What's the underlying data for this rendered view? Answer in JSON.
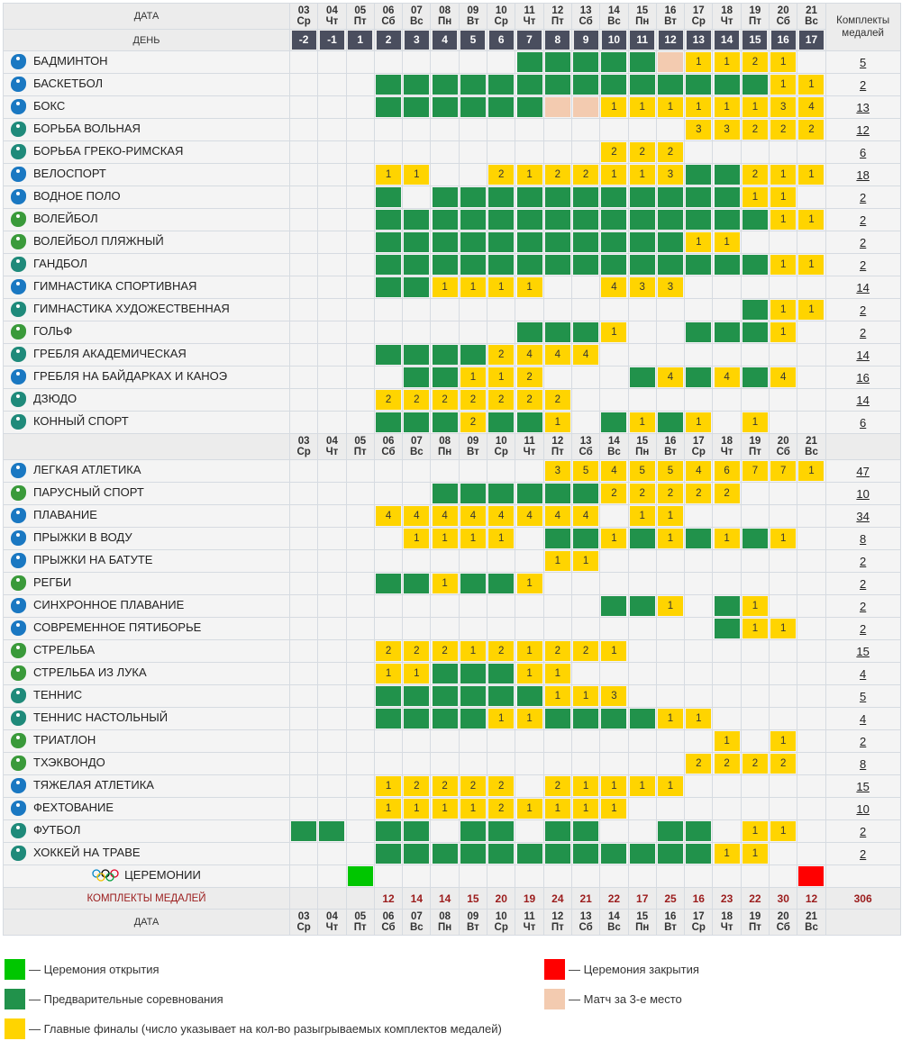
{
  "header": {
    "date_label": "ДАТА",
    "day_label": "ДЕНЬ",
    "total_label": "Комплекты медалей"
  },
  "days": [
    {
      "date": "03",
      "dow": "Ср",
      "day": "-2",
      "weekend": false
    },
    {
      "date": "04",
      "dow": "Чт",
      "day": "-1",
      "weekend": false
    },
    {
      "date": "05",
      "dow": "Пт",
      "day": "1",
      "weekend": false
    },
    {
      "date": "06",
      "dow": "Сб",
      "day": "2",
      "weekend": true
    },
    {
      "date": "07",
      "dow": "Вс",
      "day": "3",
      "weekend": true
    },
    {
      "date": "08",
      "dow": "Пн",
      "day": "4",
      "weekend": false
    },
    {
      "date": "09",
      "dow": "Вт",
      "day": "5",
      "weekend": false
    },
    {
      "date": "10",
      "dow": "Ср",
      "day": "6",
      "weekend": false
    },
    {
      "date": "11",
      "dow": "Чт",
      "day": "7",
      "weekend": false
    },
    {
      "date": "12",
      "dow": "Пт",
      "day": "8",
      "weekend": false
    },
    {
      "date": "13",
      "dow": "Сб",
      "day": "9",
      "weekend": true
    },
    {
      "date": "14",
      "dow": "Вс",
      "day": "10",
      "weekend": true
    },
    {
      "date": "15",
      "dow": "Пн",
      "day": "11",
      "weekend": false
    },
    {
      "date": "16",
      "dow": "Вт",
      "day": "12",
      "weekend": false
    },
    {
      "date": "17",
      "dow": "Ср",
      "day": "13",
      "weekend": false
    },
    {
      "date": "18",
      "dow": "Чт",
      "day": "14",
      "weekend": false
    },
    {
      "date": "19",
      "dow": "Пт",
      "day": "15",
      "weekend": false
    },
    {
      "date": "20",
      "dow": "Сб",
      "day": "16",
      "weekend": true
    },
    {
      "date": "21",
      "dow": "Вс",
      "day": "17",
      "weekend": true
    }
  ],
  "sports_a": [
    {
      "name": "БАДМИНТОН",
      "medals": "5",
      "color": "#1a78c2",
      "cells": [
        "",
        "",
        "",
        "",
        "",
        "",
        "",
        "",
        "G",
        "G",
        "G",
        "G",
        "G",
        "P",
        "1",
        "1",
        "2",
        "1",
        ""
      ]
    },
    {
      "name": "БАСКЕТБОЛ",
      "medals": "2",
      "color": "#1a78c2",
      "cells": [
        "",
        "",
        "",
        "G",
        "G",
        "G",
        "G",
        "G",
        "G",
        "G",
        "G",
        "G",
        "G",
        "G",
        "G",
        "G",
        "G",
        "1",
        "1"
      ]
    },
    {
      "name": "БОКС",
      "medals": "13",
      "color": "#1a78c2",
      "cells": [
        "",
        "",
        "",
        "G",
        "G",
        "G",
        "G",
        "G",
        "G",
        "P",
        "P",
        "1",
        "1",
        "1",
        "1",
        "1",
        "1",
        "3",
        "4"
      ]
    },
    {
      "name": "БОРЬБА ВОЛЬНАЯ",
      "medals": "12",
      "color": "#1f8a7a",
      "cells": [
        "",
        "",
        "",
        "",
        "",
        "",
        "",
        "",
        "",
        "",
        "",
        "",
        "",
        "",
        "3",
        "3",
        "2",
        "2",
        "2"
      ]
    },
    {
      "name": "БОРЬБА ГРЕКО-РИМСКАЯ",
      "medals": "6",
      "color": "#1f8a7a",
      "cells": [
        "",
        "",
        "",
        "",
        "",
        "",
        "",
        "",
        "",
        "",
        "",
        "2",
        "2",
        "2",
        "",
        "",
        "",
        "",
        ""
      ]
    },
    {
      "name": "ВЕЛОСПОРТ",
      "medals": "18",
      "color": "#1a78c2",
      "cells": [
        "",
        "",
        "",
        "1",
        "1",
        "",
        "",
        "2",
        "1",
        "2",
        "2",
        "1",
        "1",
        "3",
        "G",
        "G",
        "2",
        "1",
        "1"
      ]
    },
    {
      "name": "ВОДНОЕ ПОЛО",
      "medals": "2",
      "color": "#1a78c2",
      "cells": [
        "",
        "",
        "",
        "G",
        "",
        "G",
        "G",
        "G",
        "G",
        "G",
        "G",
        "G",
        "G",
        "G",
        "G",
        "G",
        "1",
        "1",
        ""
      ]
    },
    {
      "name": "ВОЛЕЙБОЛ",
      "medals": "2",
      "color": "#3a9a3a",
      "cells": [
        "",
        "",
        "",
        "G",
        "G",
        "G",
        "G",
        "G",
        "G",
        "G",
        "G",
        "G",
        "G",
        "G",
        "G",
        "G",
        "G",
        "1",
        "1"
      ]
    },
    {
      "name": "ВОЛЕЙБОЛ ПЛЯЖНЫЙ",
      "medals": "2",
      "color": "#3a9a3a",
      "cells": [
        "",
        "",
        "",
        "G",
        "G",
        "G",
        "G",
        "G",
        "G",
        "G",
        "G",
        "G",
        "G",
        "G",
        "1",
        "1",
        "",
        "",
        ""
      ]
    },
    {
      "name": "ГАНДБОЛ",
      "medals": "2",
      "color": "#1f8a7a",
      "cells": [
        "",
        "",
        "",
        "G",
        "G",
        "G",
        "G",
        "G",
        "G",
        "G",
        "G",
        "G",
        "G",
        "G",
        "G",
        "G",
        "G",
        "1",
        "1"
      ]
    },
    {
      "name": "ГИМНАСТИКА СПОРТИВНАЯ",
      "medals": "14",
      "color": "#1a78c2",
      "cells": [
        "",
        "",
        "",
        "G",
        "G",
        "1",
        "1",
        "1",
        "1",
        "",
        "",
        "4",
        "3",
        "3",
        "",
        "",
        "",
        "",
        ""
      ]
    },
    {
      "name": "ГИМНАСТИКА ХУДОЖЕСТВЕННАЯ",
      "medals": "2",
      "color": "#1f8a7a",
      "cells": [
        "",
        "",
        "",
        "",
        "",
        "",
        "",
        "",
        "",
        "",
        "",
        "",
        "",
        "",
        "",
        "",
        "G",
        "1",
        "1"
      ]
    },
    {
      "name": "ГОЛЬФ",
      "medals": "2",
      "color": "#3a9a3a",
      "cells": [
        "",
        "",
        "",
        "",
        "",
        "",
        "",
        "",
        "G",
        "G",
        "G",
        "1",
        "",
        "",
        "G",
        "G",
        "G",
        "1",
        ""
      ]
    },
    {
      "name": "ГРЕБЛЯ АКАДЕМИЧЕСКАЯ",
      "medals": "14",
      "color": "#1f8a7a",
      "cells": [
        "",
        "",
        "",
        "G",
        "G",
        "G",
        "G",
        "2",
        "4",
        "4",
        "4",
        "",
        "",
        "",
        "",
        "",
        "",
        "",
        ""
      ]
    },
    {
      "name": "ГРЕБЛЯ НА БАЙДАРКАХ И КАНОЭ",
      "medals": "16",
      "color": "#1a78c2",
      "cells": [
        "",
        "",
        "",
        "",
        "G",
        "G",
        "1",
        "1",
        "2",
        "",
        "",
        "",
        "G",
        "4",
        "G",
        "4",
        "G",
        "4",
        ""
      ]
    },
    {
      "name": "ДЗЮДО",
      "medals": "14",
      "color": "#1f8a7a",
      "cells": [
        "",
        "",
        "",
        "2",
        "2",
        "2",
        "2",
        "2",
        "2",
        "2",
        "",
        "",
        "",
        "",
        "",
        "",
        "",
        "",
        ""
      ]
    },
    {
      "name": "КОННЫЙ СПОРТ",
      "medals": "6",
      "color": "#1f8a7a",
      "cells": [
        "",
        "",
        "",
        "G",
        "G",
        "G",
        "2",
        "G",
        "G",
        "1",
        "",
        "G",
        "1",
        "G",
        "1",
        "",
        "1",
        "",
        ""
      ]
    }
  ],
  "sports_b": [
    {
      "name": "ЛЕГКАЯ АТЛЕТИКА",
      "medals": "47",
      "color": "#1a78c2",
      "cells": [
        "",
        "",
        "",
        "",
        "",
        "",
        "",
        "",
        "",
        "3",
        "5",
        "4",
        "5",
        "5",
        "4",
        "6",
        "7",
        "7",
        "1"
      ]
    },
    {
      "name": "ПАРУСНЫЙ СПОРТ",
      "medals": "10",
      "color": "#3a9a3a",
      "cells": [
        "",
        "",
        "",
        "",
        "",
        "G",
        "G",
        "G",
        "G",
        "G",
        "G",
        "2",
        "2",
        "2",
        "2",
        "2",
        "",
        "",
        ""
      ]
    },
    {
      "name": "ПЛАВАНИЕ",
      "medals": "34",
      "color": "#1a78c2",
      "cells": [
        "",
        "",
        "",
        "4",
        "4",
        "4",
        "4",
        "4",
        "4",
        "4",
        "4",
        "",
        "1",
        "1",
        "",
        "",
        "",
        "",
        ""
      ]
    },
    {
      "name": "ПРЫЖКИ В ВОДУ",
      "medals": "8",
      "color": "#1a78c2",
      "cells": [
        "",
        "",
        "",
        "",
        "1",
        "1",
        "1",
        "1",
        "",
        "G",
        "G",
        "1",
        "G",
        "1",
        "G",
        "1",
        "G",
        "1",
        ""
      ]
    },
    {
      "name": "ПРЫЖКИ НА БАТУТЕ",
      "medals": "2",
      "color": "#1a78c2",
      "cells": [
        "",
        "",
        "",
        "",
        "",
        "",
        "",
        "",
        "",
        "1",
        "1",
        "",
        "",
        "",
        "",
        "",
        "",
        "",
        ""
      ]
    },
    {
      "name": "РЕГБИ",
      "medals": "2",
      "color": "#3a9a3a",
      "cells": [
        "",
        "",
        "",
        "G",
        "G",
        "1",
        "G",
        "G",
        "1",
        "",
        "",
        "",
        "",
        "",
        "",
        "",
        "",
        "",
        ""
      ]
    },
    {
      "name": "СИНХРОННОЕ ПЛАВАНИЕ",
      "medals": "2",
      "color": "#1a78c2",
      "cells": [
        "",
        "",
        "",
        "",
        "",
        "",
        "",
        "",
        "",
        "",
        "",
        "G",
        "G",
        "1",
        "",
        "G",
        "1",
        "",
        ""
      ]
    },
    {
      "name": "СОВРЕМЕННОЕ ПЯТИБОРЬЕ",
      "medals": "2",
      "color": "#1a78c2",
      "cells": [
        "",
        "",
        "",
        "",
        "",
        "",
        "",
        "",
        "",
        "",
        "",
        "",
        "",
        "",
        "",
        "G",
        "1",
        "1",
        ""
      ]
    },
    {
      "name": "СТРЕЛЬБА",
      "medals": "15",
      "color": "#3a9a3a",
      "cells": [
        "",
        "",
        "",
        "2",
        "2",
        "2",
        "1",
        "2",
        "1",
        "2",
        "2",
        "1",
        "",
        "",
        "",
        "",
        "",
        "",
        ""
      ]
    },
    {
      "name": "СТРЕЛЬБА ИЗ ЛУКА",
      "medals": "4",
      "color": "#3a9a3a",
      "cells": [
        "",
        "",
        "",
        "1",
        "1",
        "G",
        "G",
        "G",
        "1",
        "1",
        "",
        "",
        "",
        "",
        "",
        "",
        "",
        "",
        ""
      ]
    },
    {
      "name": "ТЕННИС",
      "medals": "5",
      "color": "#1f8a7a",
      "cells": [
        "",
        "",
        "",
        "G",
        "G",
        "G",
        "G",
        "G",
        "G",
        "1",
        "1",
        "3",
        "",
        "",
        "",
        "",
        "",
        "",
        ""
      ]
    },
    {
      "name": "ТЕННИС НАСТОЛЬНЫЙ",
      "medals": "4",
      "color": "#1f8a7a",
      "cells": [
        "",
        "",
        "",
        "G",
        "G",
        "G",
        "G",
        "1",
        "1",
        "G",
        "G",
        "G",
        "G",
        "1",
        "1",
        "",
        "",
        "",
        ""
      ]
    },
    {
      "name": "ТРИАТЛОН",
      "medals": "2",
      "color": "#3a9a3a",
      "cells": [
        "",
        "",
        "",
        "",
        "",
        "",
        "",
        "",
        "",
        "",
        "",
        "",
        "",
        "",
        "",
        "1",
        "",
        "1",
        ""
      ]
    },
    {
      "name": "ТХЭКВОНДО",
      "medals": "8",
      "color": "#3a9a3a",
      "cells": [
        "",
        "",
        "",
        "",
        "",
        "",
        "",
        "",
        "",
        "",
        "",
        "",
        "",
        "",
        "2",
        "2",
        "2",
        "2",
        ""
      ]
    },
    {
      "name": "ТЯЖЕЛАЯ АТЛЕТИКА",
      "medals": "15",
      "color": "#1a78c2",
      "cells": [
        "",
        "",
        "",
        "1",
        "2",
        "2",
        "2",
        "2",
        "",
        "2",
        "1",
        "1",
        "1",
        "1",
        "",
        "",
        "",
        "",
        ""
      ]
    },
    {
      "name": "ФЕХТОВАНИЕ",
      "medals": "10",
      "color": "#1a78c2",
      "cells": [
        "",
        "",
        "",
        "1",
        "1",
        "1",
        "1",
        "2",
        "1",
        "1",
        "1",
        "1",
        "",
        "",
        "",
        "",
        "",
        "",
        ""
      ]
    },
    {
      "name": "ФУТБОЛ",
      "medals": "2",
      "color": "#1f8a7a",
      "cells": [
        "G",
        "G",
        "",
        "G",
        "G",
        "",
        "G",
        "G",
        "",
        "G",
        "G",
        "",
        "",
        "G",
        "G",
        "",
        "1",
        "1",
        ""
      ]
    },
    {
      "name": "ХОККЕЙ НА ТРАВЕ",
      "medals": "2",
      "color": "#1f8a7a",
      "cells": [
        "",
        "",
        "",
        "G",
        "G",
        "G",
        "G",
        "G",
        "G",
        "G",
        "G",
        "G",
        "G",
        "G",
        "G",
        "1",
        "1",
        "",
        ""
      ]
    }
  ],
  "ceremonies": {
    "name": "ЦЕРЕМОНИИ",
    "cells": [
      "",
      "",
      "O",
      "",
      "",
      "",
      "",
      "",
      "",
      "",
      "",
      "",
      "",
      "",
      "",
      "",
      "",
      "",
      "C"
    ]
  },
  "medal_totals": {
    "label": "КОМПЛЕКТЫ МЕДАЛЕЙ",
    "values": [
      "",
      "",
      "",
      "12",
      "14",
      "14",
      "15",
      "20",
      "19",
      "24",
      "21",
      "22",
      "17",
      "25",
      "16",
      "23",
      "22",
      "30",
      "12"
    ],
    "total": "306"
  },
  "legend": [
    {
      "key": "O",
      "text": "— Церемония открытия",
      "color": "#00c600"
    },
    {
      "key": "C",
      "text": "— Церемония закрытия",
      "color": "#ff0000"
    },
    {
      "key": "G",
      "text": "— Предварительные соревнования",
      "color": "#21924b"
    },
    {
      "key": "P",
      "text": "— Матч за 3-е место",
      "color": "#f3cbb0"
    },
    {
      "key": "Y",
      "text": "— Главные финалы (число указывает на кол-во разыгрываемых комплектов медалей)",
      "color": "#ffd400"
    }
  ]
}
